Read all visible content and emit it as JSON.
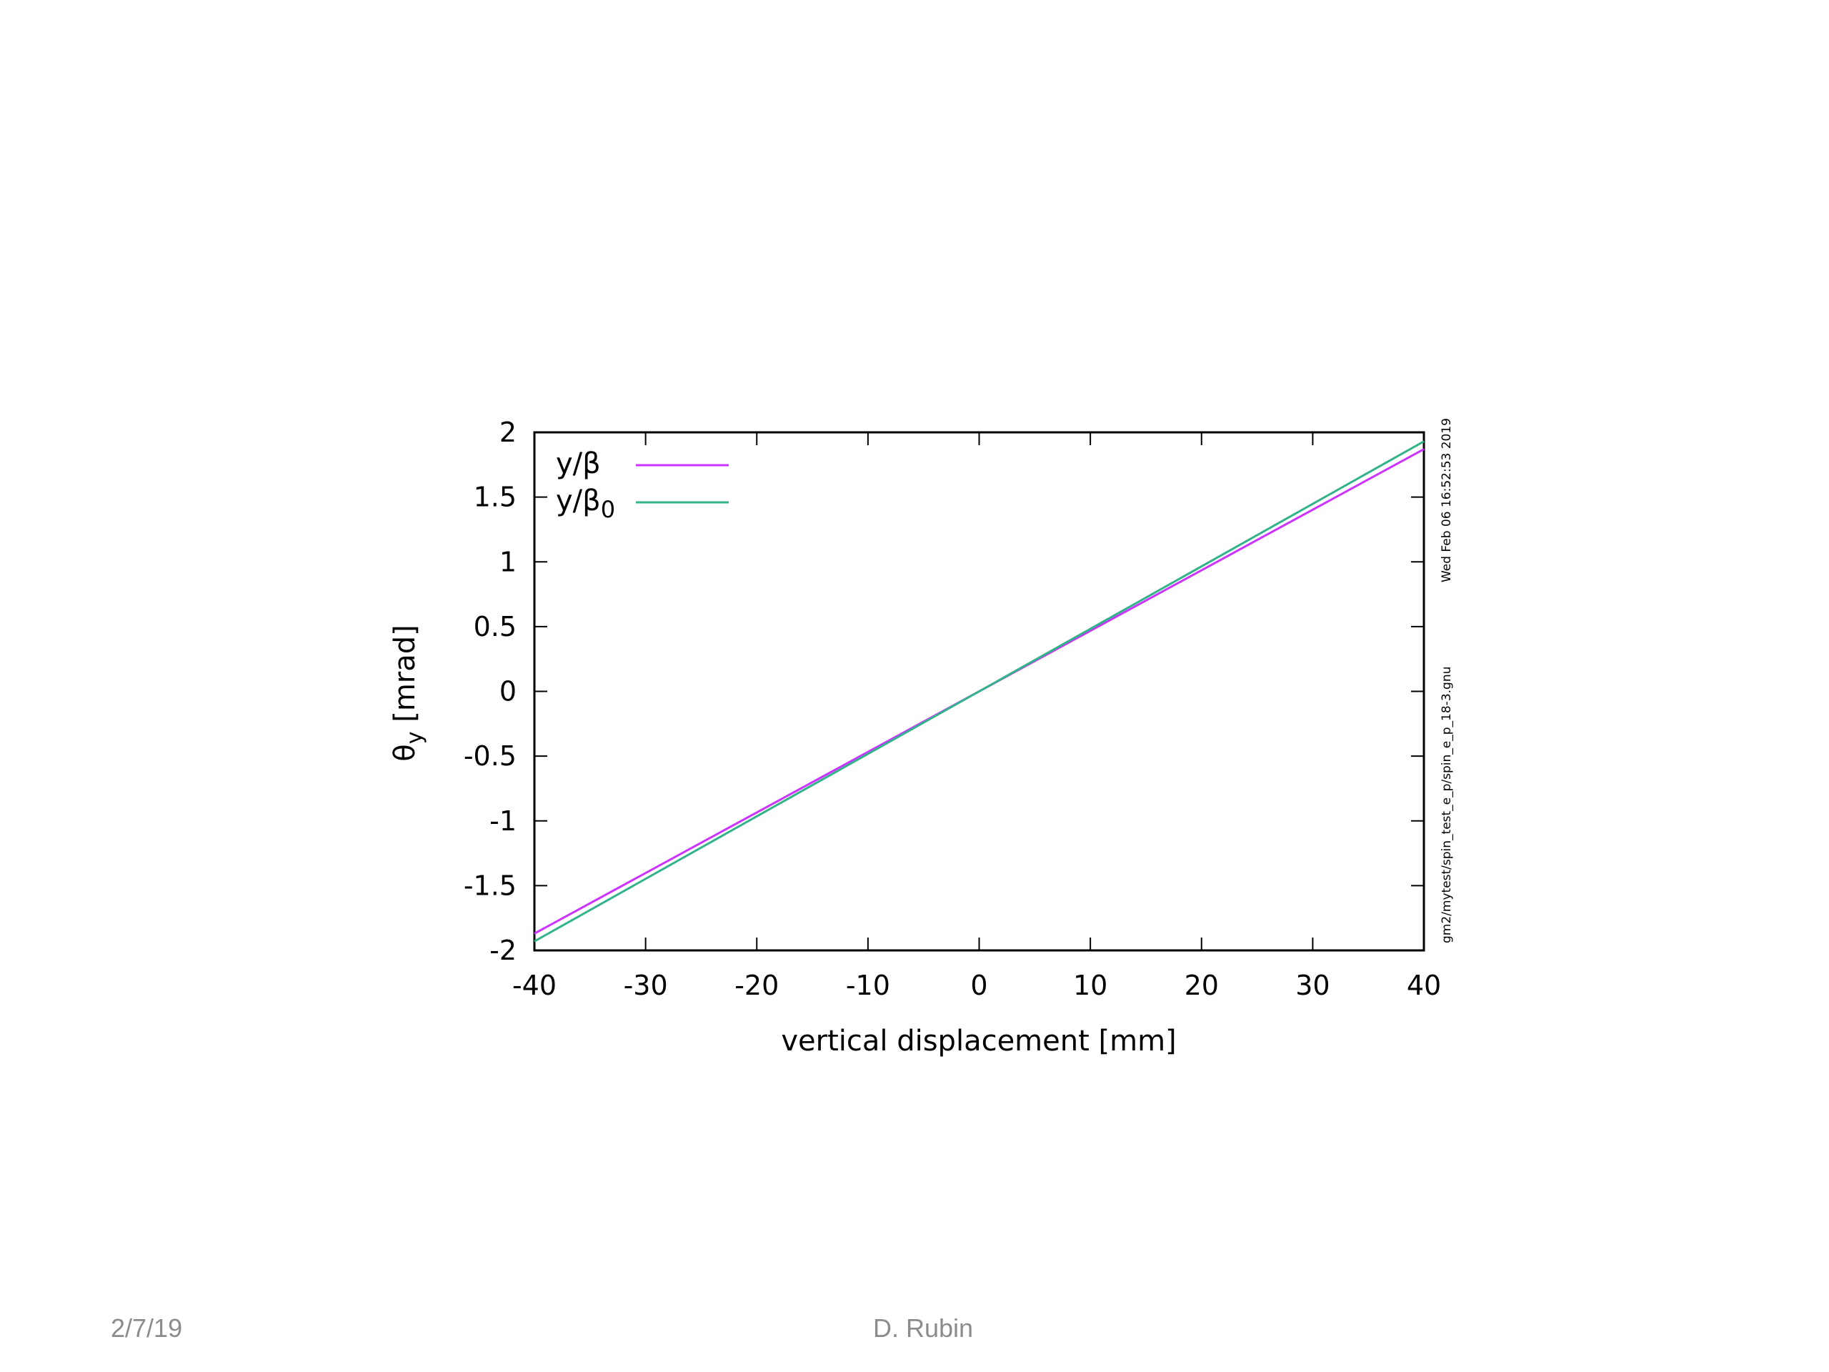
{
  "slide": {
    "footer_date": "2/7/19",
    "footer_author": "D. Rubin"
  },
  "chart_data": {
    "type": "line",
    "xlabel": "vertical displacement [mm]",
    "ylabel": "θy [mrad]",
    "xlim": [
      -40,
      40
    ],
    "ylim": [
      -2,
      2
    ],
    "x_ticks": [
      "-40",
      "-30",
      "-20",
      "-10",
      "0",
      "10",
      "20",
      "30",
      "40"
    ],
    "y_ticks": [
      "2",
      "1.5",
      "1",
      "0.5",
      "0",
      "-0.5",
      "-1",
      "-1.5",
      "-2"
    ],
    "legend_position": "top-left",
    "side_annotation_date": "Wed Feb 06 16:52:53 2019",
    "side_annotation_file": "gm2/mytest/spin_test_e_p/spin_e_p_18-3.gnu",
    "series": [
      {
        "name": "y/β",
        "label_base": "y/β",
        "label_sub": "",
        "color": "#cc33ff",
        "x": [
          -40,
          40
        ],
        "y": [
          -1.87,
          1.87
        ]
      },
      {
        "name": "y/β0",
        "label_base": "y/β",
        "label_sub": "0",
        "color": "#33b38c",
        "x": [
          -40,
          40
        ],
        "y": [
          -1.93,
          1.93
        ]
      }
    ]
  }
}
